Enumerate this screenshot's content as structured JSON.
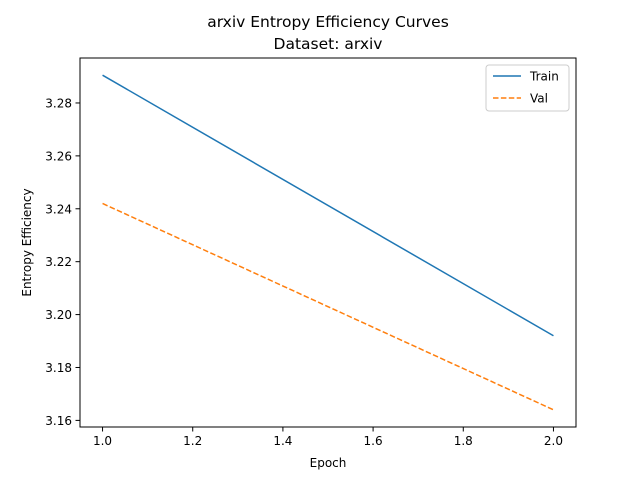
{
  "chart_data": {
    "type": "line",
    "title": "arxiv Entropy Efficiency Curves",
    "subtitle": "Dataset: arxiv",
    "xlabel": "Epoch",
    "ylabel": "Entropy Efficiency",
    "xlim": [
      0.95,
      2.05
    ],
    "ylim": [
      3.1575,
      3.297
    ],
    "xticks": [
      1.0,
      1.2,
      1.4,
      1.6,
      1.8,
      2.0
    ],
    "xtick_labels": [
      "1.0",
      "1.2",
      "1.4",
      "1.6",
      "1.8",
      "2.0"
    ],
    "yticks": [
      3.16,
      3.18,
      3.2,
      3.22,
      3.24,
      3.26,
      3.28
    ],
    "ytick_labels": [
      "3.16",
      "3.18",
      "3.20",
      "3.22",
      "3.24",
      "3.26",
      "3.28"
    ],
    "grid": false,
    "legend_position": "top-right",
    "series": [
      {
        "name": "Train",
        "x": [
          1,
          2
        ],
        "values": [
          3.2905,
          3.192
        ],
        "color": "#1f77b4",
        "style": "solid"
      },
      {
        "name": "Val",
        "x": [
          1,
          2
        ],
        "values": [
          3.242,
          3.164
        ],
        "color": "#ff7f0e",
        "style": "dashed"
      }
    ]
  }
}
